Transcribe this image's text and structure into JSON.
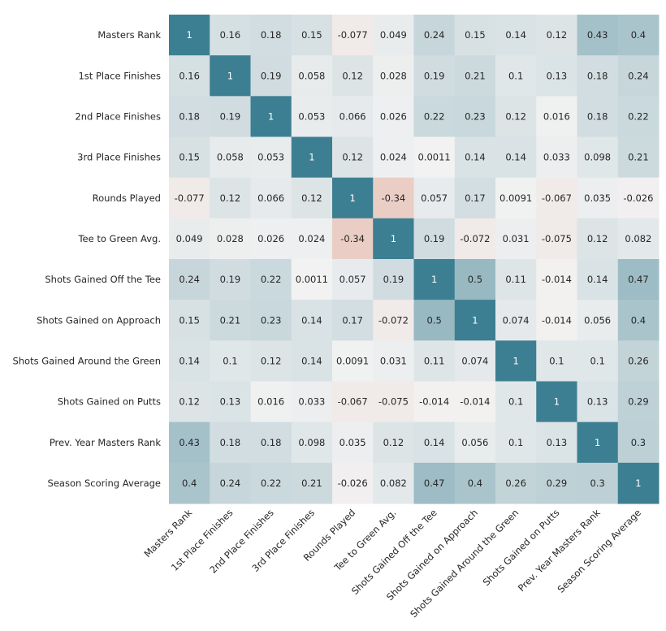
{
  "chart_data": {
    "type": "heatmap",
    "title": "",
    "labels": [
      "Masters Rank",
      "1st Place Finishes",
      "2nd Place Finishes",
      "3rd Place Finishes",
      "Rounds Played",
      "Tee to Green Avg.",
      "Shots Gained Off the Tee",
      "Shots Gained on Approach",
      "Shots Gained Around the Green",
      "Shots Gained on Putts",
      "Prev. Year Masters Rank",
      "Season Scoring Average"
    ],
    "values": [
      [
        "1",
        "0.16",
        "0.18",
        "0.15",
        "-0.077",
        "0.049",
        "0.24",
        "0.15",
        "0.14",
        "0.12",
        "0.43",
        "0.4"
      ],
      [
        "0.16",
        "1",
        "0.19",
        "0.058",
        "0.12",
        "0.028",
        "0.19",
        "0.21",
        "0.1",
        "0.13",
        "0.18",
        "0.24"
      ],
      [
        "0.18",
        "0.19",
        "1",
        "0.053",
        "0.066",
        "0.026",
        "0.22",
        "0.23",
        "0.12",
        "0.016",
        "0.18",
        "0.22"
      ],
      [
        "0.15",
        "0.058",
        "0.053",
        "1",
        "0.12",
        "0.024",
        "0.0011",
        "0.14",
        "0.14",
        "0.033",
        "0.098",
        "0.21"
      ],
      [
        "-0.077",
        "0.12",
        "0.066",
        "0.12",
        "1",
        "-0.34",
        "0.057",
        "0.17",
        "0.0091",
        "-0.067",
        "0.035",
        "-0.026"
      ],
      [
        "0.049",
        "0.028",
        "0.026",
        "0.024",
        "-0.34",
        "1",
        "0.19",
        "-0.072",
        "0.031",
        "-0.075",
        "0.12",
        "0.082"
      ],
      [
        "0.24",
        "0.19",
        "0.22",
        "0.0011",
        "0.057",
        "0.19",
        "1",
        "0.5",
        "0.11",
        "-0.014",
        "0.14",
        "0.47"
      ],
      [
        "0.15",
        "0.21",
        "0.23",
        "0.14",
        "0.17",
        "-0.072",
        "0.5",
        "1",
        "0.074",
        "-0.014",
        "0.056",
        "0.4"
      ],
      [
        "0.14",
        "0.1",
        "0.12",
        "0.14",
        "0.0091",
        "0.031",
        "0.11",
        "0.074",
        "1",
        "0.1",
        "0.1",
        "0.26"
      ],
      [
        "0.12",
        "0.13",
        "0.016",
        "0.033",
        "-0.067",
        "-0.075",
        "-0.014",
        "-0.014",
        "0.1",
        "1",
        "0.13",
        "0.29"
      ],
      [
        "0.43",
        "0.18",
        "0.18",
        "0.098",
        "0.035",
        "0.12",
        "0.14",
        "0.056",
        "0.1",
        "0.13",
        "1",
        "0.3"
      ],
      [
        "0.4",
        "0.24",
        "0.22",
        "0.21",
        "-0.026",
        "0.082",
        "0.47",
        "0.4",
        "0.26",
        "0.29",
        "0.3",
        "1"
      ]
    ],
    "colormap": {
      "negative": "#d9876f",
      "center": "#f2f2f2",
      "positive": "#3d7f92"
    },
    "color_range": [
      -1,
      1
    ],
    "annotated": true,
    "colorbar": false,
    "grid": false
  }
}
